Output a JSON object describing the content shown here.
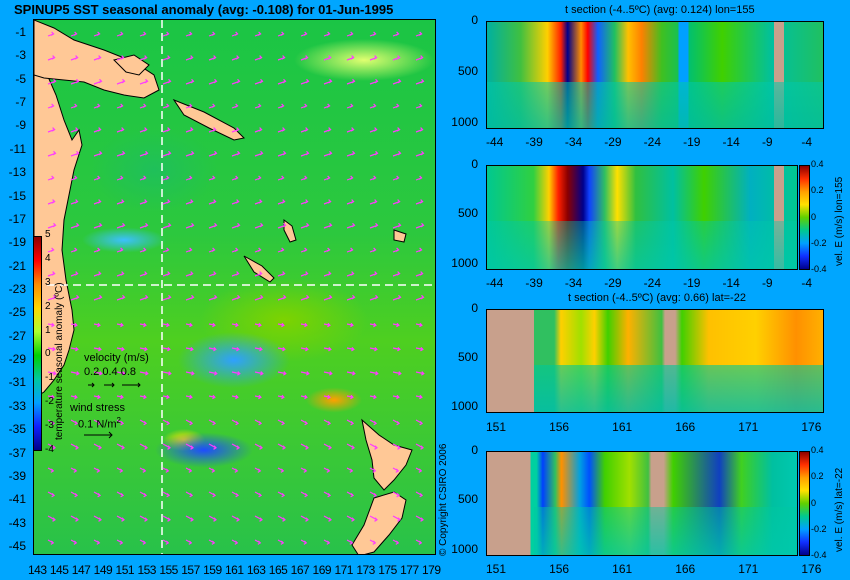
{
  "map": {
    "title": "SPINUP5 SST seasonal anomaly (avg: -0.108) for 01-Jun-1995",
    "y_ticks": [
      "-1",
      "-3",
      "-5",
      "-7",
      "-9",
      "-11",
      "-13",
      "-15",
      "-17",
      "-19",
      "-21",
      "-23",
      "-25",
      "-27",
      "-29",
      "-31",
      "-33",
      "-35",
      "-37",
      "-39",
      "-41",
      "-43",
      "-45"
    ],
    "x_ticks": [
      "143",
      "145",
      "147",
      "149",
      "151",
      "153",
      "155",
      "157",
      "159",
      "161",
      "163",
      "165",
      "167",
      "169",
      "171",
      "173",
      "175",
      "177",
      "179"
    ],
    "colorbar_ticks": [
      "5",
      "4",
      "3",
      "2",
      "1",
      "0",
      "-1",
      "-2",
      "-3",
      "-4"
    ],
    "colorbar_label": "temperature seasonal anomaly (ºC)",
    "colorbar_colors": [
      "#8b0000",
      "#ff0000",
      "#ff8c00",
      "#ffd700",
      "#adff2f",
      "#00d000",
      "#00c8a0",
      "#00a0ff",
      "#1020ff",
      "#00008b"
    ],
    "velocity_label": "velocity (m/s)",
    "velocity_scale": "0.2 0.4 0.8",
    "wind_label": "wind stress",
    "wind_scale": "0.1 N/m",
    "wind_scale_sup": "2",
    "copyright": "© Copyright CSIRO 2006",
    "land_color": "#ffc896",
    "arrow_color": "#ff3cff"
  },
  "panels": [
    {
      "title": "t section (-4..5ºC) (avg: 0.124) lon=155",
      "y_ticks": [
        "0",
        "500",
        "1000"
      ],
      "x_ticks": [
        "-44",
        "-39",
        "-34",
        "-29",
        "-24",
        "-19",
        "-14",
        "-9",
        "-4"
      ]
    },
    {
      "title": "",
      "y_ticks": [
        "0",
        "500",
        "1000"
      ],
      "x_ticks": [
        "-44",
        "-39",
        "-34",
        "-29",
        "-24",
        "-19",
        "-14",
        "-9",
        "-4"
      ],
      "colorbar_ticks": [
        "0.4",
        "0.2",
        "0",
        "-0.2",
        "-0.4"
      ],
      "colorbar_label": "vel. E (m/s) lon=155"
    },
    {
      "title": "t section (-4..5ºC) (avg: 0.66) lat=-22",
      "y_ticks": [
        "0",
        "500",
        "1000"
      ],
      "x_ticks": [
        "151",
        "156",
        "161",
        "166",
        "171",
        "176"
      ]
    },
    {
      "title": "",
      "y_ticks": [
        "0",
        "500",
        "1000"
      ],
      "x_ticks": [
        "151",
        "156",
        "161",
        "166",
        "171",
        "176"
      ],
      "colorbar_ticks": [
        "0.4",
        "0.2",
        "0",
        "-0.2",
        "-0.4"
      ],
      "colorbar_label": "vel. E (m/s) lat=-22"
    }
  ]
}
